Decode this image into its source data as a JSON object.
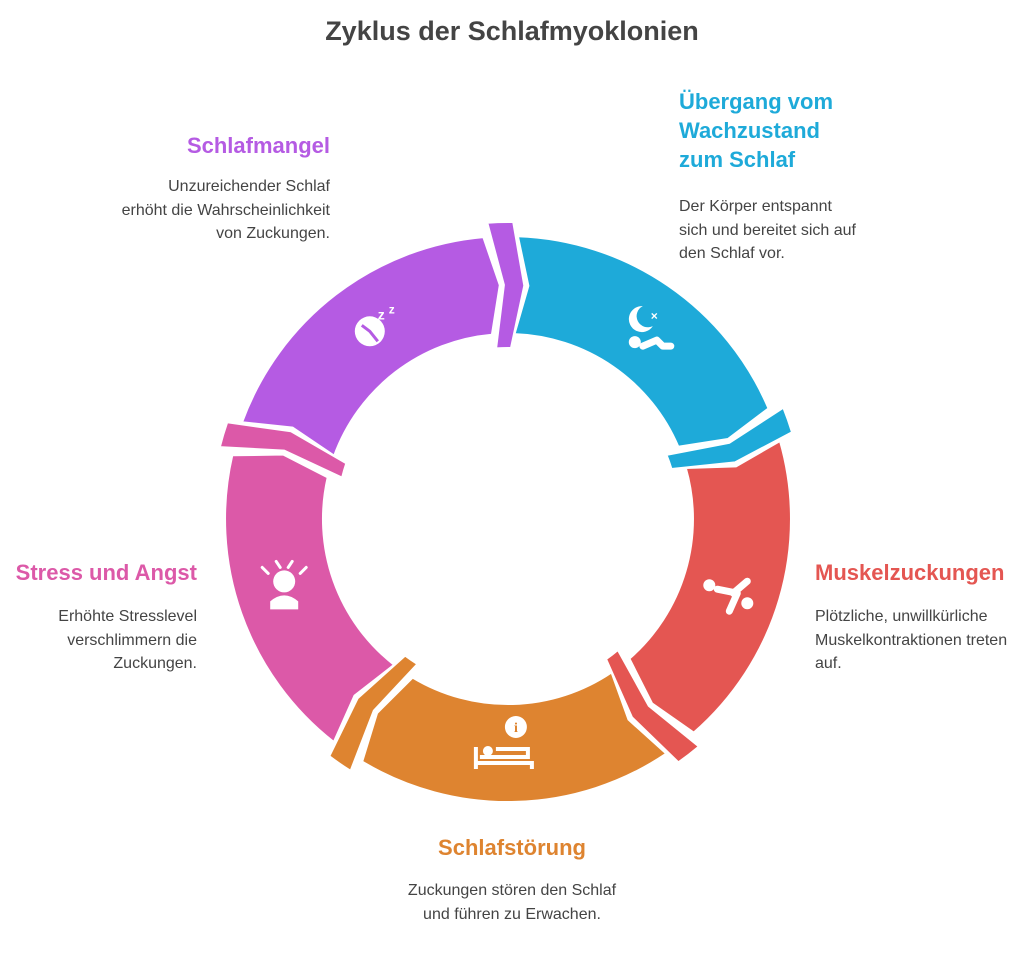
{
  "title": "Zyklus der Schlafmyoklonien",
  "stages": [
    {
      "id": "schlafmangel",
      "label": "Schlafmangel",
      "description": "Unzureichender Schlaf erhöht die Wahrscheinlichkeit von Zuckungen.",
      "color": "#b55be3",
      "icon": "sleep-clock-icon"
    },
    {
      "id": "uebergang",
      "label": "Übergang vom Wachzustand zum Schlaf",
      "description": "Der Körper entspannt sich und bereitet sich auf den Schlaf vor.",
      "color": "#1eaad9",
      "icon": "moon-sleeping-person-icon"
    },
    {
      "id": "muskelzuckungen",
      "label": "Muskelzuckungen",
      "description": "Plötzliche, unwillkürliche Muskelkontraktionen treten auf.",
      "color": "#e45652",
      "icon": "falling-person-icon"
    },
    {
      "id": "schlafstoerung",
      "label": "Schlafstörung",
      "description": "Zuckungen stören den Schlaf und führen zu Erwachen.",
      "color": "#de8430",
      "icon": "bed-alert-icon"
    },
    {
      "id": "stress",
      "label": "Stress und Angst",
      "description": "Erhöhte Stresslevel verschlimmern die Zuckungen.",
      "color": "#dc59a8",
      "icon": "stressed-person-icon"
    }
  ]
}
